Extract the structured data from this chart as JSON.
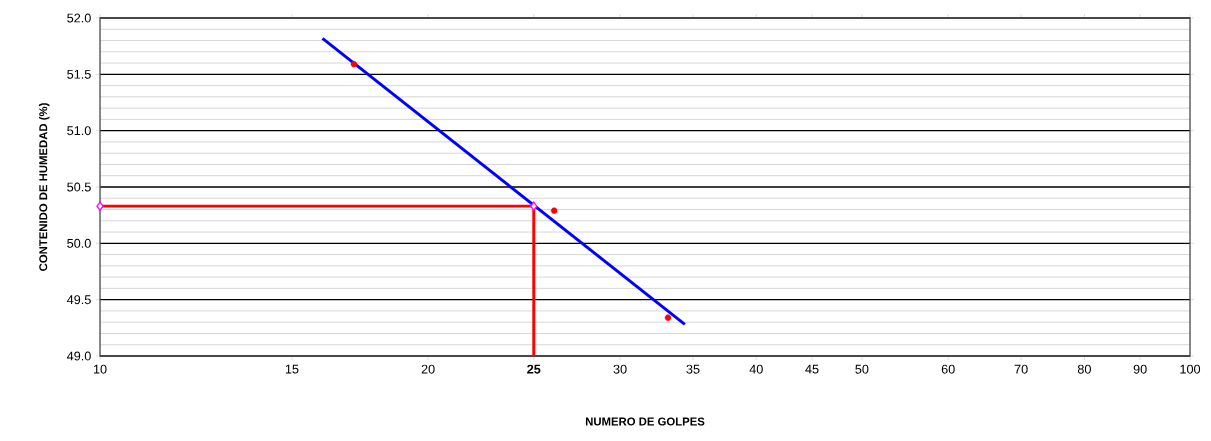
{
  "chart_data": {
    "type": "line",
    "xlabel": "NUMERO  DE GOLPES",
    "ylabel": "CONTENIDO  DE HUMEDAD  (%)",
    "log": "x",
    "grid": true,
    "xlim": [
      10,
      100
    ],
    "xticks": [
      10,
      15,
      20,
      {
        "value": 25,
        "label": "**25**"
      },
      30,
      35,
      40,
      45,
      50,
      60,
      70,
      80,
      90,
      100
    ],
    "ylim": [
      49.0,
      52.0
    ],
    "yticks": [
      {
        "value": 49.0,
        "label": "49.0"
      },
      49.5,
      {
        "value": 50.0,
        "label": "50.0"
      },
      50.5,
      {
        "value": 51.0,
        "label": "51.0"
      },
      51.5,
      {
        "value": 52.0,
        "label": "52.0"
      }
    ],
    "series": [
      {
        "color": "#ff0000",
        "marker": "none",
        "x": [
          10,
          25,
          25
        ],
        "values": [
          50.33,
          50.33,
          49.0
        ]
      },
      {
        "color": "#0000ff",
        "marker": "none",
        "x": [
          16,
          34.4
        ],
        "values": [
          51.82,
          49.28
        ]
      },
      {
        "type": "scatter",
        "color": "#ff0000",
        "marker": "circle",
        "x": [
          17.1,
          26.1,
          33.2
        ],
        "values": [
          51.59,
          50.29,
          49.34
        ]
      },
      {
        "type": "scatter",
        "color": "#ff00ff",
        "marker": "diamond",
        "x": [
          10,
          25
        ],
        "values": [
          50.33,
          50.33
        ]
      }
    ]
  }
}
